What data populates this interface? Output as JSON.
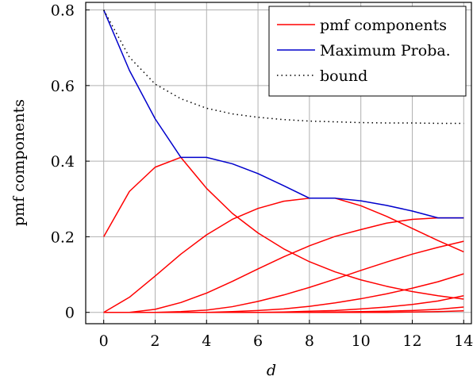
{
  "chart_data": {
    "type": "line",
    "xlabel": "d",
    "ylabel": "pmf components",
    "xlim": [
      -0.7,
      14.3
    ],
    "ylim": [
      -0.03,
      0.82
    ],
    "xticks": [
      0,
      2,
      4,
      6,
      8,
      10,
      12,
      14
    ],
    "yticks": [
      0,
      0.2,
      0.4,
      0.6,
      0.8
    ],
    "ytick_labels": [
      "0",
      "0.2",
      "0.4",
      "0.6",
      "0.8"
    ],
    "grid": true,
    "legend_position": "top-right",
    "x": [
      0,
      1,
      2,
      3,
      4,
      5,
      6,
      7,
      8,
      9,
      10,
      11,
      12,
      13,
      14
    ],
    "series": [
      {
        "name": "pmf components",
        "color": "#ff0000",
        "values": [
          0.2,
          0.32,
          0.384,
          0.41,
          0.328,
          0.262,
          0.21,
          0.168,
          0.134,
          0.107,
          0.086,
          0.069,
          0.055,
          0.044,
          0.035
        ]
      },
      {
        "color": "#ff0000",
        "values": [
          0,
          0.04,
          0.096,
          0.154,
          0.205,
          0.246,
          0.275,
          0.294,
          0.302,
          0.302,
          0.282,
          0.254,
          0.222,
          0.19,
          0.16
        ]
      },
      {
        "color": "#ff0000",
        "values": [
          0,
          0.0,
          0.008,
          0.026,
          0.051,
          0.082,
          0.115,
          0.147,
          0.176,
          0.201,
          0.219,
          0.236,
          0.246,
          0.25,
          0.25
        ]
      },
      {
        "color": "#ff0000",
        "values": [
          0,
          0,
          0.0,
          0.002,
          0.006,
          0.015,
          0.029,
          0.046,
          0.066,
          0.088,
          0.111,
          0.133,
          0.154,
          0.172,
          0.188
        ]
      },
      {
        "color": "#ff0000",
        "values": [
          0,
          0,
          0,
          0.0,
          0.0,
          0.002,
          0.005,
          0.009,
          0.016,
          0.025,
          0.036,
          0.049,
          0.064,
          0.081,
          0.102
        ]
      },
      {
        "color": "#ff0000",
        "values": [
          0,
          0,
          0,
          0,
          0,
          0.0,
          0.0,
          0.001,
          0.003,
          0.005,
          0.009,
          0.014,
          0.021,
          0.03,
          0.044
        ]
      },
      {
        "color": "#ff0000",
        "values": [
          0,
          0,
          0,
          0,
          0,
          0,
          0,
          0.0,
          0.0,
          0.001,
          0.002,
          0.003,
          0.005,
          0.008,
          0.014
        ]
      },
      {
        "color": "#ff0000",
        "values": [
          0,
          0,
          0,
          0,
          0,
          0,
          0,
          0,
          0,
          0.0,
          0.0,
          0.0,
          0.001,
          0.002,
          0.004
        ]
      },
      {
        "name": "Maximum Proba.",
        "color": "#0000cc",
        "values": [
          0.8,
          0.64,
          0.512,
          0.41,
          0.41,
          0.393,
          0.367,
          0.335,
          0.302,
          0.302,
          0.295,
          0.283,
          0.268,
          0.25,
          0.25
        ]
      },
      {
        "name": "bound",
        "color": "#000000",
        "dash": "dotted",
        "values": [
          0.8,
          0.675,
          0.604,
          0.565,
          0.54,
          0.525,
          0.516,
          0.51,
          0.506,
          0.504,
          0.502,
          0.501,
          0.501,
          0.5,
          0.5
        ]
      }
    ],
    "legend": [
      {
        "label": "pmf components",
        "color": "#ff0000",
        "dash": "solid"
      },
      {
        "label": "Maximum Proba.",
        "color": "#0000cc",
        "dash": "solid"
      },
      {
        "label": "bound",
        "color": "#000000",
        "dash": "dotted"
      }
    ]
  }
}
